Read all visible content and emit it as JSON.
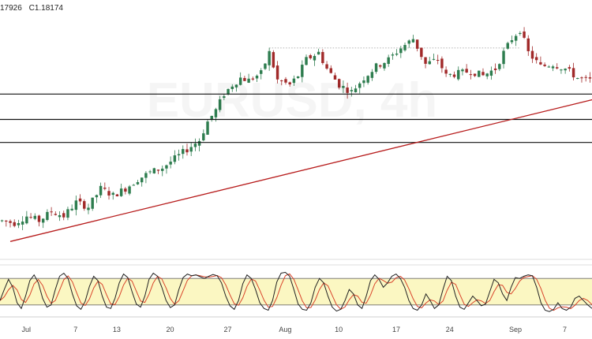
{
  "header": {
    "low_label": "17926",
    "close_label": "C1.18174"
  },
  "watermark": "EURUSD, 4h",
  "chart_data": [
    {
      "type": "candlestick",
      "title": "",
      "price_range": [
        1.104,
        1.206
      ],
      "colors": {
        "up": "#2e7d4f",
        "down": "#a12a2a",
        "trendline": "#b71c1c",
        "level": "#111111"
      },
      "horizontal_levels": [
        1.172,
        1.161,
        1.151
      ],
      "resistance_dotted": 1.192,
      "trendline": {
        "from": [
          2,
          1.108
        ],
        "to": [
          142,
          1.17
        ]
      },
      "close_path": [
        [
          0,
          1.117
        ],
        [
          3,
          1.116
        ],
        [
          6,
          1.119
        ],
        [
          9,
          1.117
        ],
        [
          12,
          1.121
        ],
        [
          15,
          1.119
        ],
        [
          18,
          1.125
        ],
        [
          21,
          1.123
        ],
        [
          24,
          1.131
        ],
        [
          27,
          1.128
        ],
        [
          30,
          1.131
        ],
        [
          33,
          1.135
        ],
        [
          36,
          1.138
        ],
        [
          39,
          1.14
        ],
        [
          42,
          1.144
        ],
        [
          45,
          1.148
        ],
        [
          48,
          1.152
        ],
        [
          50,
          1.16
        ],
        [
          52,
          1.165
        ],
        [
          54,
          1.172
        ],
        [
          56,
          1.176
        ],
        [
          58,
          1.179
        ],
        [
          60,
          1.178
        ],
        [
          63,
          1.181
        ],
        [
          65,
          1.19
        ],
        [
          67,
          1.178
        ],
        [
          70,
          1.176
        ],
        [
          72,
          1.18
        ],
        [
          74,
          1.187
        ],
        [
          77,
          1.19
        ],
        [
          79,
          1.183
        ],
        [
          82,
          1.176
        ],
        [
          85,
          1.173
        ],
        [
          88,
          1.179
        ],
        [
          91,
          1.184
        ],
        [
          94,
          1.187
        ],
        [
          97,
          1.192
        ],
        [
          100,
          1.196
        ],
        [
          103,
          1.185
        ],
        [
          106,
          1.187
        ],
        [
          108,
          1.18
        ],
        [
          111,
          1.181
        ],
        [
          114,
          1.182
        ],
        [
          117,
          1.18
        ],
        [
          120,
          1.183
        ],
        [
          122,
          1.19
        ],
        [
          124,
          1.196
        ],
        [
          126,
          1.2
        ],
        [
          128,
          1.19
        ],
        [
          131,
          1.184
        ],
        [
          134,
          1.185
        ],
        [
          137,
          1.183
        ],
        [
          140,
          1.179
        ],
        [
          142,
          1.178
        ]
      ],
      "x_ticks": [
        {
          "label": "Jul",
          "at": 6
        },
        {
          "label": "7",
          "at": 18
        },
        {
          "label": "13",
          "at": 28
        },
        {
          "label": "20",
          "at": 41
        },
        {
          "label": "27",
          "at": 55
        },
        {
          "label": "Aug",
          "at": 69
        },
        {
          "label": "10",
          "at": 82
        },
        {
          "label": "17",
          "at": 96
        },
        {
          "label": "24",
          "at": 109
        },
        {
          "label": "Sep",
          "at": 125
        },
        {
          "label": "7",
          "at": 137
        }
      ]
    },
    {
      "type": "line",
      "title": "",
      "indicator_range": [
        0,
        100
      ],
      "band": [
        20,
        80
      ],
      "colors": {
        "band_fill": "#fbf7c2",
        "band_line": "#6d6d6d",
        "k_line": "#222222",
        "d_line": "#d9442b"
      },
      "stoch_k": [
        30,
        55,
        78,
        60,
        25,
        12,
        40,
        75,
        88,
        70,
        35,
        15,
        20,
        55,
        85,
        92,
        80,
        45,
        18,
        10,
        28,
        62,
        85,
        75,
        40,
        15,
        12,
        35,
        70,
        90,
        82,
        50,
        22,
        15,
        40,
        78,
        92,
        85,
        60,
        30,
        14,
        20,
        55,
        82,
        90,
        86,
        88,
        84,
        80,
        85,
        89,
        86,
        70,
        40,
        18,
        10,
        30,
        68,
        88,
        80,
        55,
        25,
        12,
        8,
        30,
        72,
        92,
        94,
        85,
        55,
        22,
        10,
        8,
        25,
        60,
        80,
        70,
        40,
        15,
        6,
        10,
        30,
        55,
        45,
        20,
        12,
        40,
        75,
        88,
        78,
        60,
        70,
        85,
        90,
        80,
        60,
        30,
        12,
        8,
        20,
        45,
        30,
        12,
        20,
        55,
        85,
        75,
        40,
        15,
        10,
        25,
        40,
        30,
        18,
        22,
        50,
        78,
        70,
        45,
        30,
        60,
        82,
        80,
        85,
        88,
        86,
        60,
        25,
        8,
        5,
        10,
        25,
        12,
        8,
        15,
        35,
        40,
        30,
        20,
        12
      ]
    }
  ]
}
